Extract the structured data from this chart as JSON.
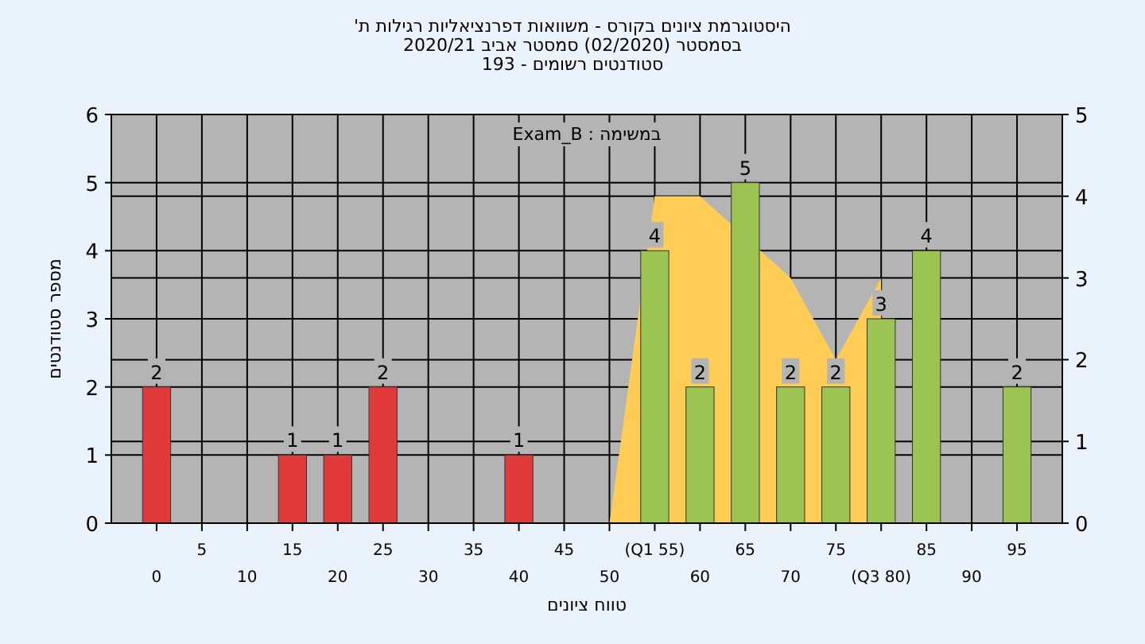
{
  "chart_data": {
    "type": "bar",
    "title": "היסטוגרמת ציונים בקורס - משוואות דפרנציאליות רגילות ת'",
    "subtitle": "בסמסטר  (02/2020)  סמסטר אביב 2020/21",
    "annotations": [
      "סטודנטים רשומים - 193",
      "במשימה : Exam_B"
    ],
    "xlabel": "טווח ציונים",
    "ylabel": "מספר סטודנטים",
    "categories": [
      "0",
      "5",
      "10",
      "15",
      "20",
      "25",
      "30",
      "35",
      "40",
      "45",
      "50",
      "(Q1 55)",
      "60",
      "65",
      "70",
      "75",
      "(Q3 80)",
      "85",
      "90",
      "95"
    ],
    "series": [
      {
        "values": [
          2,
          0,
          0,
          1,
          1,
          2,
          0,
          0,
          1,
          0,
          0,
          4,
          2,
          5,
          2,
          2,
          3,
          4,
          0,
          2
        ],
        "value_labels": [
          "2",
          null,
          null,
          "1",
          "1",
          "2",
          null,
          null,
          "1",
          null,
          null,
          "4",
          "2",
          "5",
          "2",
          "2",
          "3",
          "4",
          null,
          "2"
        ],
        "colors": [
          "#e03a3a",
          "#e03a3a",
          "#e03a3a",
          "#e03a3a",
          "#e03a3a",
          "#e03a3a",
          "#e03a3a",
          "#e03a3a",
          "#e03a3a",
          "#e03a3a",
          "#e03a3a",
          "#9cc452",
          "#9cc452",
          "#9cc452",
          "#9cc452",
          "#9cc452",
          "#9cc452",
          "#9cc452",
          "#9cc452",
          "#9cc452"
        ]
      },
      {
        "type": "area",
        "axis": "y2",
        "color": "#ffcc55",
        "values": [
          null,
          null,
          null,
          null,
          null,
          null,
          null,
          null,
          null,
          null,
          0,
          4,
          4,
          null,
          3,
          2,
          3,
          null,
          null,
          null
        ]
      }
    ],
    "ylim": [
      0,
      6
    ],
    "yticks": [
      0,
      1,
      2,
      3,
      4,
      5,
      6
    ],
    "y2lim": [
      0,
      5
    ],
    "y2ticks": [
      0,
      1,
      2,
      3,
      4,
      5
    ],
    "grid": true
  }
}
